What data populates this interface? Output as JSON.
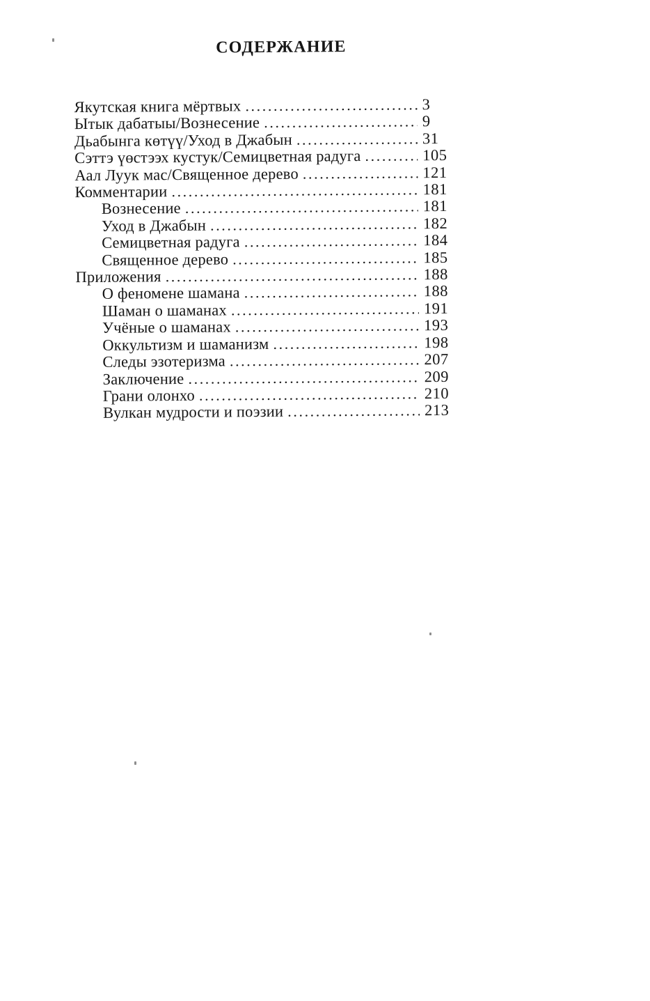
{
  "page": {
    "title": "СОДЕРЖАНИЕ"
  },
  "toc": {
    "entries": [
      {
        "label": "Якутская книга мёртвых",
        "page": "3",
        "level": 0
      },
      {
        "label": "Ытык дабатыы/Вознесение",
        "page": "9",
        "level": 0
      },
      {
        "label": "Дьабынга көтүү/Уход в Джабын",
        "page": "31",
        "level": 0
      },
      {
        "label": "Сэттэ үөстээх кустук/Семицветная радуга",
        "page": "105",
        "level": 0
      },
      {
        "label": "Аал Луук мас/Священное дерево",
        "page": "121",
        "level": 0
      },
      {
        "label": "Комментарии",
        "page": "181",
        "level": 0
      },
      {
        "label": "Вознесение",
        "page": "181",
        "level": 1
      },
      {
        "label": "Уход в Джабын",
        "page": "182",
        "level": 1
      },
      {
        "label": "Семицветная радуга",
        "page": "184",
        "level": 1
      },
      {
        "label": "Священное дерево",
        "page": "185",
        "level": 1
      },
      {
        "label": "Приложения",
        "page": "188",
        "level": 0
      },
      {
        "label": "О феномене шамана",
        "page": "188",
        "level": 1
      },
      {
        "label": "Шаман о шаманах",
        "page": "191",
        "level": 1
      },
      {
        "label": "Учёные о шаманах",
        "page": "193",
        "level": 1
      },
      {
        "label": "Оккультизм и шаманизм",
        "page": "198",
        "level": 1
      },
      {
        "label": "Следы эзотеризма",
        "page": "207",
        "level": 1
      },
      {
        "label": "Заключение",
        "page": "209",
        "level": 1
      },
      {
        "label": "Грани олонхо",
        "page": "210",
        "level": 1
      },
      {
        "label": "Вулкан мудрости и поэзии",
        "page": "213",
        "level": 1
      }
    ]
  }
}
